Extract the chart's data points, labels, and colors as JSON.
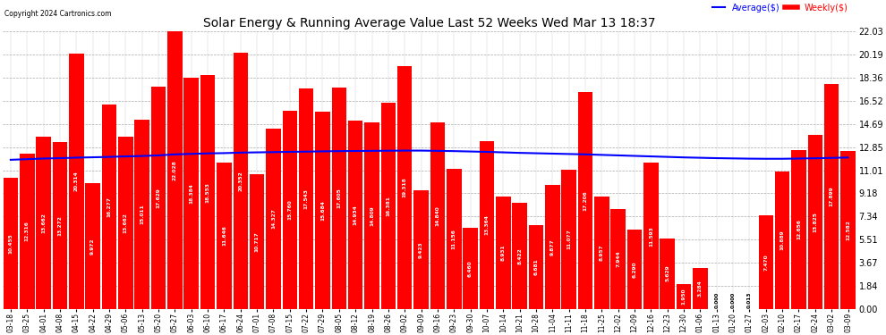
{
  "title": "Solar Energy & Running Average Value Last 52 Weeks Wed Mar 13 18:37",
  "copyright": "Copyright 2024 Cartronics.com",
  "bar_color": "#ff0000",
  "avg_line_color": "#0000ff",
  "background_color": "#ffffff",
  "yticks": [
    0.0,
    1.84,
    3.67,
    5.51,
    7.34,
    9.18,
    11.01,
    12.85,
    14.69,
    16.52,
    18.36,
    20.19,
    22.03
  ],
  "legend_avg": "Average($)",
  "legend_weekly": "Weekly($)",
  "categories": [
    "03-18\n0",
    "03-25\n0",
    "04-01\n0",
    "04-08\n0",
    "04-15\n0",
    "04-22\n0",
    "04-29\n0",
    "05-06\n0",
    "05-13\n0",
    "05-20\n0",
    "05-27\n0",
    "06-03\n0",
    "06-10\n0",
    "06-17\n0",
    "06-24\n0",
    "07-01\n0",
    "07-08\n0",
    "07-15\n0",
    "07-22\n0",
    "07-29\n0",
    "08-05\n0",
    "08-12\n0",
    "08-19\n0",
    "08-26\n0",
    "09-02\n0",
    "09-09\n0",
    "09-16\n0",
    "09-23\n0",
    "09-30\n0",
    "10-07\n1",
    "10-14\n1",
    "10-21\n1",
    "10-28\n1",
    "11-04\n1",
    "11-11\n1",
    "11-18\n1",
    "11-25\n1",
    "12-02\n1",
    "12-09\n1",
    "12-16\n1",
    "12-23\n1",
    "12-30\n1",
    "01-06\n0",
    "01-13\n0",
    "01-20\n0",
    "01-27\n0",
    "02-03\n0",
    "02-10\n0",
    "02-17\n0",
    "02-24\n0",
    "03-02\n0",
    "03-09\n0"
  ],
  "weekly_values": [
    10.455,
    12.316,
    13.662,
    13.272,
    20.314,
    9.972,
    16.277,
    13.662,
    15.011,
    17.629,
    22.028,
    18.384,
    18.553,
    11.646,
    20.352,
    10.717,
    14.327,
    15.76,
    17.543,
    15.684,
    17.605,
    14.934,
    14.809,
    16.381,
    19.318,
    9.423,
    14.84,
    11.156,
    6.46,
    13.364,
    8.931,
    8.422,
    6.681,
    9.877,
    11.077,
    17.206,
    8.957,
    7.944,
    6.29,
    11.593,
    5.629,
    1.95,
    3.284,
    0.0,
    0.0,
    0.013,
    7.47,
    10.889,
    12.656,
    13.825,
    17.899,
    12.582
  ],
  "avg_values": [
    11.85,
    11.9,
    11.95,
    11.98,
    12.02,
    12.05,
    12.08,
    12.12,
    12.15,
    12.2,
    12.28,
    12.32,
    12.36,
    12.38,
    12.42,
    12.44,
    12.46,
    12.48,
    12.5,
    12.52,
    12.54,
    12.55,
    12.56,
    12.57,
    12.58,
    12.58,
    12.56,
    12.54,
    12.51,
    12.48,
    12.44,
    12.4,
    12.37,
    12.34,
    12.31,
    12.28,
    12.24,
    12.2,
    12.16,
    12.12,
    12.08,
    12.04,
    12.01,
    11.98,
    11.96,
    11.94,
    11.93,
    11.93,
    11.95,
    11.97,
    12.0,
    12.03
  ]
}
